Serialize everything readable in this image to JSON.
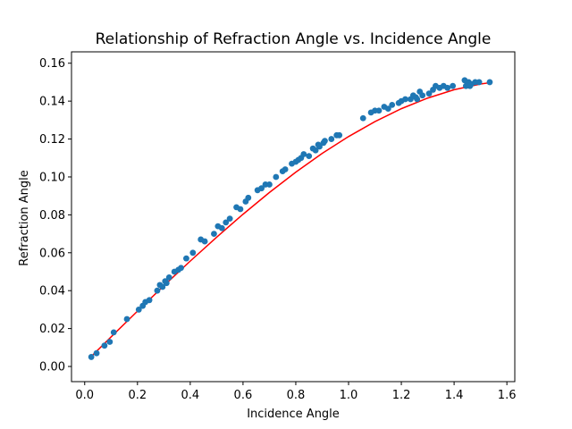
{
  "chart_data": {
    "type": "scatter",
    "title": "Relationship of Refraction Angle vs. Incidence Angle",
    "xlabel": "Incidence Angle",
    "ylabel": "Refraction Angle",
    "xlim": [
      -0.05,
      1.63
    ],
    "ylim": [
      -0.008,
      0.166
    ],
    "xticks": [
      "0.0",
      "0.2",
      "0.4",
      "0.6",
      "0.8",
      "1.0",
      "1.2",
      "1.4",
      "1.6"
    ],
    "yticks": [
      "0.00",
      "0.02",
      "0.04",
      "0.06",
      "0.08",
      "0.10",
      "0.12",
      "0.14",
      "0.16"
    ],
    "grid": false,
    "colors": {
      "points": "#1f77b4",
      "fit_line": "#ff0000"
    },
    "series": [
      {
        "type": "scatter",
        "points": [
          [
            0.025,
            0.005
          ],
          [
            0.045,
            0.007
          ],
          [
            0.075,
            0.011
          ],
          [
            0.095,
            0.013
          ],
          [
            0.11,
            0.018
          ],
          [
            0.16,
            0.025
          ],
          [
            0.205,
            0.03
          ],
          [
            0.22,
            0.032
          ],
          [
            0.23,
            0.034
          ],
          [
            0.245,
            0.035
          ],
          [
            0.275,
            0.04
          ],
          [
            0.285,
            0.043
          ],
          [
            0.295,
            0.042
          ],
          [
            0.305,
            0.045
          ],
          [
            0.31,
            0.044
          ],
          [
            0.32,
            0.047
          ],
          [
            0.34,
            0.05
          ],
          [
            0.355,
            0.051
          ],
          [
            0.365,
            0.052
          ],
          [
            0.385,
            0.057
          ],
          [
            0.41,
            0.06
          ],
          [
            0.44,
            0.067
          ],
          [
            0.455,
            0.066
          ],
          [
            0.49,
            0.07
          ],
          [
            0.505,
            0.074
          ],
          [
            0.52,
            0.073
          ],
          [
            0.535,
            0.076
          ],
          [
            0.55,
            0.078
          ],
          [
            0.575,
            0.084
          ],
          [
            0.59,
            0.083
          ],
          [
            0.61,
            0.087
          ],
          [
            0.62,
            0.089
          ],
          [
            0.655,
            0.093
          ],
          [
            0.67,
            0.094
          ],
          [
            0.685,
            0.096
          ],
          [
            0.7,
            0.096
          ],
          [
            0.725,
            0.1
          ],
          [
            0.75,
            0.103
          ],
          [
            0.76,
            0.104
          ],
          [
            0.785,
            0.107
          ],
          [
            0.8,
            0.108
          ],
          [
            0.81,
            0.109
          ],
          [
            0.82,
            0.11
          ],
          [
            0.83,
            0.112
          ],
          [
            0.85,
            0.111
          ],
          [
            0.865,
            0.115
          ],
          [
            0.875,
            0.114
          ],
          [
            0.885,
            0.117
          ],
          [
            0.89,
            0.116
          ],
          [
            0.905,
            0.118
          ],
          [
            0.91,
            0.119
          ],
          [
            0.935,
            0.12
          ],
          [
            0.955,
            0.122
          ],
          [
            0.965,
            0.122
          ],
          [
            1.055,
            0.131
          ],
          [
            1.085,
            0.134
          ],
          [
            1.1,
            0.135
          ],
          [
            1.115,
            0.135
          ],
          [
            1.135,
            0.137
          ],
          [
            1.15,
            0.136
          ],
          [
            1.165,
            0.138
          ],
          [
            1.19,
            0.139
          ],
          [
            1.2,
            0.14
          ],
          [
            1.215,
            0.141
          ],
          [
            1.235,
            0.141
          ],
          [
            1.245,
            0.143
          ],
          [
            1.255,
            0.142
          ],
          [
            1.26,
            0.141
          ],
          [
            1.27,
            0.145
          ],
          [
            1.28,
            0.143
          ],
          [
            1.305,
            0.144
          ],
          [
            1.32,
            0.146
          ],
          [
            1.33,
            0.148
          ],
          [
            1.345,
            0.147
          ],
          [
            1.36,
            0.148
          ],
          [
            1.375,
            0.147
          ],
          [
            1.395,
            0.148
          ],
          [
            1.44,
            0.151
          ],
          [
            1.445,
            0.148
          ],
          [
            1.455,
            0.15
          ],
          [
            1.46,
            0.148
          ],
          [
            1.465,
            0.149
          ],
          [
            1.48,
            0.15
          ],
          [
            1.495,
            0.15
          ],
          [
            1.535,
            0.15
          ]
        ]
      },
      {
        "type": "line",
        "points": [
          [
            0.02,
            0.0046
          ],
          [
            0.1,
            0.0156
          ],
          [
            0.2,
            0.0292
          ],
          [
            0.3,
            0.0426
          ],
          [
            0.4,
            0.0556
          ],
          [
            0.5,
            0.0682
          ],
          [
            0.6,
            0.0803
          ],
          [
            0.7,
            0.0918
          ],
          [
            0.8,
            0.1025
          ],
          [
            0.9,
            0.1124
          ],
          [
            1.0,
            0.1213
          ],
          [
            1.1,
            0.1292
          ],
          [
            1.2,
            0.136
          ],
          [
            1.3,
            0.1416
          ],
          [
            1.4,
            0.146
          ],
          [
            1.5,
            0.149
          ],
          [
            1.535,
            0.1497
          ]
        ]
      }
    ]
  }
}
